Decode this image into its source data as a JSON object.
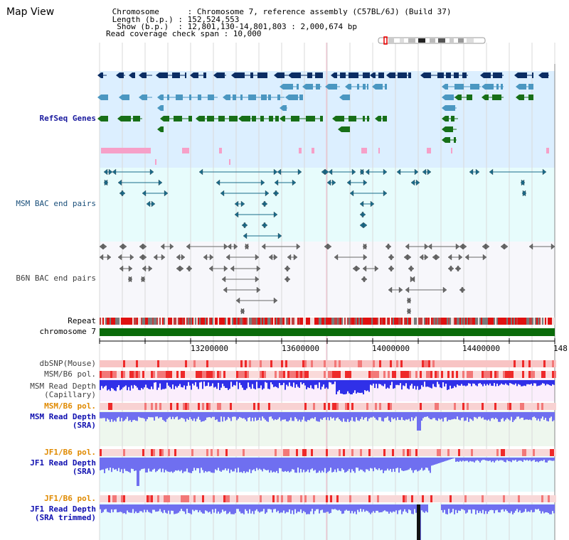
{
  "header": {
    "title": "Map View",
    "info_lines": [
      " Chromosome      : Chromosome 7, reference assembly (C57BL/6J) (Build 37)",
      " Length (b.p.) : 152,524,553",
      "  Show (b.p.)  : 12,801,130-14,801,803 : 2,000,674 bp",
      "Read coverage check span : 10,000"
    ]
  },
  "tracks": {
    "refseq": "RefSeq Genes",
    "msm_bac": "MSM BAC end pairs",
    "b6n_bac": "B6N BAC end pairs",
    "repeat": "Repeat",
    "chromosome": "chromosome 7"
  },
  "axis": {
    "ticks": [
      "13200000",
      "13600000",
      "14000000",
      "14400000",
      "148"
    ]
  },
  "lower_tracks": {
    "dbsnp": "dbSNP(Mouse)",
    "msm_b6_pol": "MSM/B6 pol.",
    "msm_rd_cap_1": "MSM Read Depth",
    "msm_rd_cap_2": "(Capillary)",
    "msm_b6_pol_2": "MSM/B6 pol.",
    "msm_rd_sra_1": "MSM Read Depth",
    "msm_rd_sra_2": "(SRA)",
    "jf1_b6_pol": "JF1/B6 pol.",
    "jf1_rd_sra_1": "JF1 Read Depth",
    "jf1_rd_sra_2": "(SRA)",
    "jf1_b6_pol_2": "JF1/B6 pol.",
    "jf1_rd_trim_1": "JF1 Read Depth",
    "jf1_rd_trim_2": "(SRA trimmed)"
  },
  "colors": {
    "gene_navy": "#0b2d63",
    "gene_blue": "#4b97c1",
    "gene_green": "#176f17",
    "bac_teal": "#1a6b8a",
    "b6n_grey": "#6a6a6a",
    "chrom_green": "#0a6b0a",
    "depth_blue": "#6f6ff0",
    "pol_red": "#f05050"
  }
}
